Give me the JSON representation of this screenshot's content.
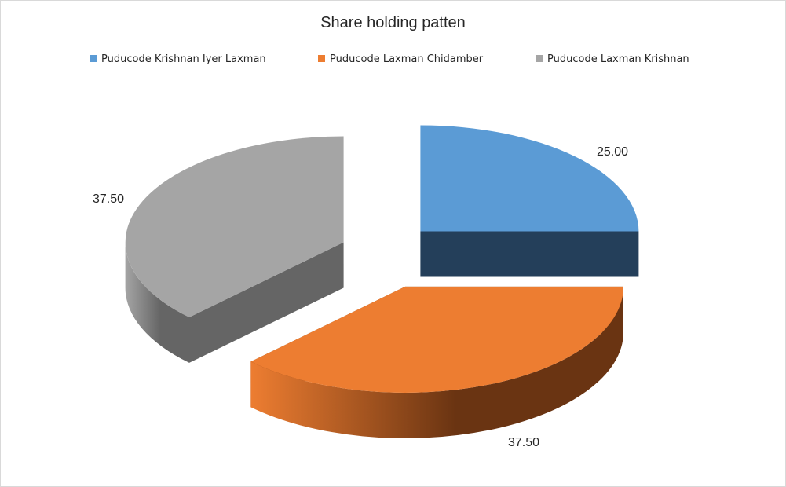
{
  "chart_data": {
    "type": "pie",
    "title": "Share holding patten",
    "legend_position": "top",
    "three_d": true,
    "exploded": true,
    "slices": [
      {
        "name": "Puducode Krishnan Iyer Laxman",
        "value": 25.0,
        "label": "25.00",
        "color": "#5b9bd5",
        "side_color": "#243f5a"
      },
      {
        "name": "Puducode Laxman Chidamber",
        "value": 37.5,
        "label": "37.50",
        "color": "#ed7d31",
        "side_color": "#6a3412"
      },
      {
        "name": "Puducode Laxman Krishnan",
        "value": 37.5,
        "label": "37.50",
        "color": "#a5a5a5",
        "side_color": "#656565"
      }
    ]
  }
}
